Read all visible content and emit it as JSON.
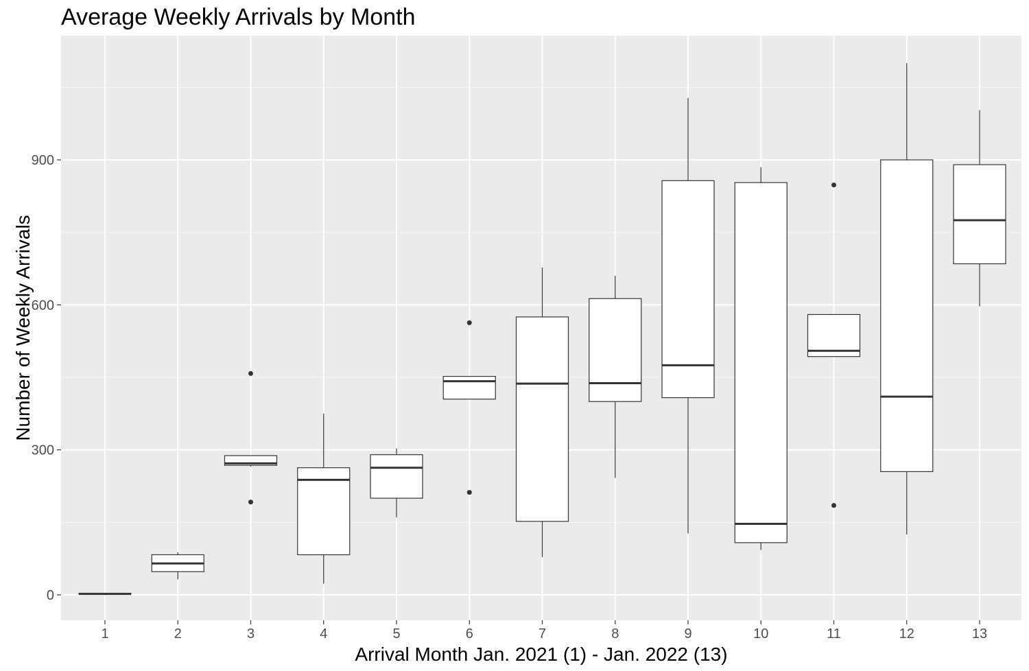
{
  "chart_data": {
    "type": "box",
    "title": "Average Weekly Arrivals by Month",
    "xlabel": "Arrival Month Jan. 2021 (1) - Jan. 2022 (13)",
    "ylabel": "Number of Weekly Arrivals",
    "categories": [
      "1",
      "2",
      "3",
      "4",
      "5",
      "6",
      "7",
      "8",
      "9",
      "10",
      "11",
      "12",
      "13"
    ],
    "y_ticks": [
      0,
      300,
      600,
      900
    ],
    "y_tick_labels": [
      "0",
      "300",
      "600",
      "900"
    ],
    "ylim": [
      -50,
      1150
    ],
    "grid": true,
    "boxes": [
      {
        "category": "1",
        "whisker_low": 2,
        "q1": 2,
        "median": 2,
        "q3": 3,
        "whisker_high": 3,
        "outliers": []
      },
      {
        "category": "2",
        "whisker_low": 32,
        "q1": 48,
        "median": 65,
        "q3": 83,
        "whisker_high": 88,
        "outliers": []
      },
      {
        "category": "3",
        "whisker_low": 265,
        "q1": 268,
        "median": 272,
        "q3": 288,
        "whisker_high": 288,
        "outliers": [
          192,
          458
        ]
      },
      {
        "category": "4",
        "whisker_low": 23,
        "q1": 83,
        "median": 238,
        "q3": 263,
        "whisker_high": 375,
        "outliers": []
      },
      {
        "category": "5",
        "whisker_low": 160,
        "q1": 200,
        "median": 263,
        "q3": 290,
        "whisker_high": 303,
        "outliers": []
      },
      {
        "category": "6",
        "whisker_low": 405,
        "q1": 405,
        "median": 442,
        "q3": 452,
        "whisker_high": 452,
        "outliers": [
          212,
          563
        ]
      },
      {
        "category": "7",
        "whisker_low": 78,
        "q1": 152,
        "median": 437,
        "q3": 575,
        "whisker_high": 677,
        "outliers": []
      },
      {
        "category": "8",
        "whisker_low": 242,
        "q1": 400,
        "median": 438,
        "q3": 613,
        "whisker_high": 660,
        "outliers": []
      },
      {
        "category": "9",
        "whisker_low": 127,
        "q1": 408,
        "median": 475,
        "q3": 857,
        "whisker_high": 1028,
        "outliers": []
      },
      {
        "category": "10",
        "whisker_low": 93,
        "q1": 108,
        "median": 147,
        "q3": 853,
        "whisker_high": 885,
        "outliers": []
      },
      {
        "category": "11",
        "whisker_low": 493,
        "q1": 493,
        "median": 505,
        "q3": 580,
        "whisker_high": 580,
        "outliers": [
          185,
          848
        ]
      },
      {
        "category": "12",
        "whisker_low": 125,
        "q1": 255,
        "median": 410,
        "q3": 900,
        "whisker_high": 1100,
        "outliers": []
      },
      {
        "category": "13",
        "whisker_low": 597,
        "q1": 685,
        "median": 775,
        "q3": 890,
        "whisker_high": 1003,
        "outliers": []
      }
    ],
    "colors": {
      "panel_background": "#ebebeb",
      "grid_major": "#ffffff",
      "grid_minor": "#f5f5f5",
      "box_fill": "#ffffff",
      "box_stroke": "#333333",
      "tick_text": "#4d4d4d",
      "tick_mark": "#333333"
    }
  }
}
